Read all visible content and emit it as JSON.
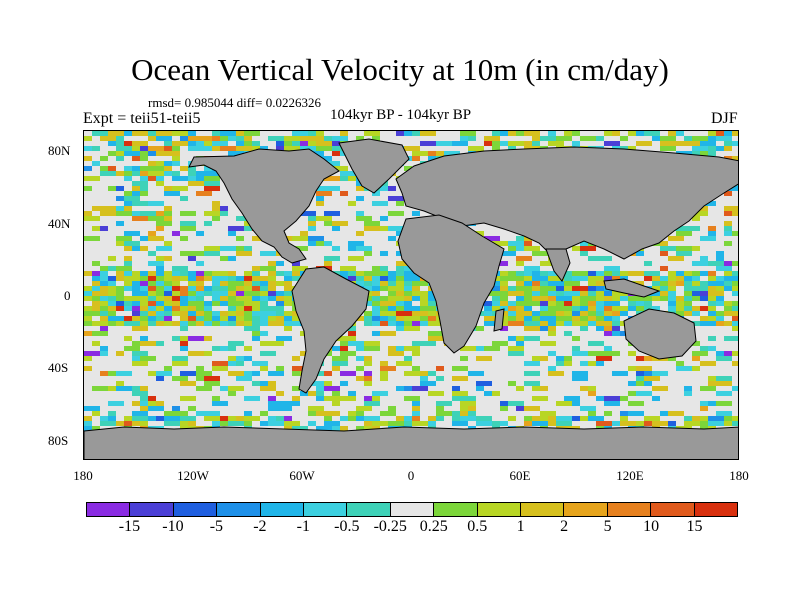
{
  "header": {
    "title": "Ocean Vertical Velocity at 10m (in cm/day)",
    "stats": "rmsd= 0.985044 diff= 0.0226326",
    "left_label": "Expt = teii51-teii5",
    "center_label": "104kyr BP - 104kyr BP",
    "right_label": "DJF"
  },
  "axes": {
    "y_ticks": [
      "80N",
      "40N",
      "0",
      "40S",
      "80S"
    ],
    "x_ticks": [
      "180",
      "120W",
      "60W",
      "0",
      "60E",
      "120E",
      "180"
    ]
  },
  "map": {
    "land_color": "#999999",
    "coastline_color": "#000000",
    "background_ocean_color": "#e6e6e6"
  },
  "colorbar": {
    "colors": [
      "#8a2be2",
      "#4b3fd6",
      "#1f5fe0",
      "#1e90e8",
      "#20b5e8",
      "#3cd0e0",
      "#3ed2b8",
      "#e6e6e6",
      "#7cd63a",
      "#b8d624",
      "#d6c01e",
      "#e6a41c",
      "#e6801e",
      "#e05a1c",
      "#d8300e"
    ],
    "labels": [
      "-15",
      "-10",
      "-5",
      "-2",
      "-1",
      "-0.5",
      "-0.25",
      "0.25",
      "0.5",
      "1",
      "2",
      "5",
      "10",
      "15"
    ]
  }
}
